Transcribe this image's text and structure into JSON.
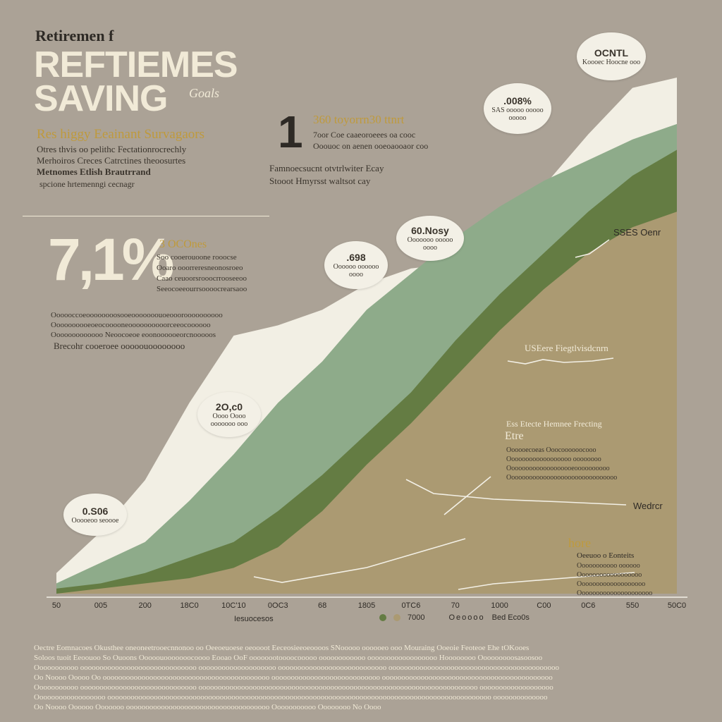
{
  "header": {
    "overline": "Retiremen f",
    "title_line1": "REFTIEMES",
    "title_line2": "SAVING",
    "title_tag": "Goals",
    "subtitle": "Res higgy Eeainant Survagaors",
    "desc_lines": [
      "Otres thvis oo pelithc Fectationrocrechly",
      "Merhoiros Creces Catrctines theoosurtes",
      "Metnomes Etlish Brautrrand"
    ],
    "desc_footer": "spcione hrtemenngi cecnagr"
  },
  "callout_center": {
    "number": "1",
    "headline": "360 toyorrn30 ttnrt",
    "lines": [
      "7oor Coe caaeoroeees oa cooc",
      "Ooouoc on aenen ooeoaooaor coo"
    ],
    "footer_lines": [
      "Famnoecsucnt otvtrlwiter Ecay",
      "Stooot Hmyrsst waltsot cay"
    ]
  },
  "stat": {
    "value": "7,1%",
    "heading": "3 OCOnes",
    "lines": [
      "Soo cooerouoone rooocse",
      "Ooaro ooorreresneonosroeo",
      "Caao ceuoorsrooocrrooseeoo",
      "Seeocoeeourrsoooocrearsaoo"
    ]
  },
  "paragraph": {
    "lines": [
      "Oooooccoeoooooooosooeooooooouoeoooroooooooooo",
      "Oooooooooeoeocooooneoooooooooorceeocoooooo",
      "Ooooooooooooo Neoocoeoe eoonoooooeorcnooooos"
    ],
    "footer": "Brecohr cooeroee ooooouoooooooo"
  },
  "bubbles": [
    {
      "value": "0.S06",
      "sub": "Ooooeoo seoooe"
    },
    {
      "value": "2O,c0",
      "sub": "Oooo Oooo ooooooo ooo"
    },
    {
      "value": ".698",
      "sub": "Oooooo oooooo oooo"
    },
    {
      "value": "60.Nosy",
      "sub": "Ooooooo ooooo oooo"
    },
    {
      "value": ".008%",
      "sub": "SAS ooooo ooooo ooooo"
    },
    {
      "value": "OCNTL",
      "sub": "Koooec Hoocne ooo"
    }
  ],
  "right_labels": {
    "label1": "SSES Oenr",
    "label2": "USEere Fiegtlvisdcnrn",
    "box_title": "Ess Etecte Hemnee Frecting",
    "box_tag": "Etre",
    "box_lines": [
      "Oooooecoeas Ooocoooooocooo",
      "Oooooooooooooooooo oooooooo",
      "Ooooooooooooooooooeoooooooooo",
      "Ooooooooooooooooooooooooooooooo"
    ],
    "label3": "Wedrcr",
    "small_tag": "hore",
    "small_title": "Oeeuoo o Eonteits",
    "small_lines": [
      "Ooooooooooo oooooo",
      "Oooooooooooooooooo",
      "Ooooooooooooooooooo",
      "Ooooooooooooooooooooo"
    ]
  },
  "legend": {
    "left_label": "Iesuocesos",
    "item1": "7000",
    "item2": "Oeoooo",
    "item3": "Bed Eco0s"
  },
  "footer_lines": [
    "Oectre Eomnacoes Okusthee oneoneetrooecnnonoo oo Oeeoeuoese oeoooot Eeceosieeoeoooos SNooooo oooooeo ooo Mouraing Ooeoie Feoteoe Ehe tOKooes",
    "Soloos tuoit Eeoouoo So Ouoons Ooooouooooooocoooo Eooao OoF oooooootoooocooooo oooooooooooo oooooooooooooooooo Hoooooooo Ooooooooosasoosoo",
    "Ooooooooooo oooooooooooooooooooooooooooooo oooooooooooooooooooo oooooooooooooooooooooooooooo oooooooooooooooooooooooooooooooooooooooooooo",
    "Oo Noooo Ooooo Oo ooooooooooooooooooooooooooooooooooooooooooo oooooooooooooooooooooooooooo oooooooooooooooooooooooooooooooooooooooooooo",
    "Ooooooooooo oooooooooooooooooooooooooooooo oooooooooooooooooooooooooooooooooooooooooooooooooooooooooooooooooooooooo ooooooooooooooooooo",
    "Oooooooooooooooooo ooooooooooooooooooooooooooooooooooooooooooooooooooooooooooooooooooooooooooooooooooooooooooooooooooo oooooooooooooo",
    "Oo Noooo Oooooo Ooooooo ooooooooooooooooooooooooooooooooooooo Ooooooooooo Oooooooo No Oooo"
  ],
  "chart_data": {
    "type": "area",
    "title": "",
    "x": [
      "50",
      "005",
      "200",
      "18C0",
      "10C'10",
      "0OC3",
      "68",
      "1805",
      "0TC6",
      "70",
      "1000",
      "C00",
      "0C6",
      "550",
      "50C0"
    ],
    "series": [
      {
        "color": "#f2efe4",
        "values": [
          4,
          12,
          22,
          37,
          50,
          52,
          55,
          60,
          63,
          64,
          72,
          79,
          89,
          98,
          100
        ]
      },
      {
        "color": "#8eab8a",
        "values": [
          2,
          6,
          10,
          18,
          27,
          37,
          45,
          55,
          62,
          69,
          75,
          80,
          84,
          88,
          91
        ]
      },
      {
        "color": "#647c43",
        "values": [
          1,
          2,
          4,
          7,
          10,
          16,
          23,
          31,
          39,
          49,
          58,
          66,
          74,
          81,
          86
        ]
      },
      {
        "color": "#ab9a72",
        "values": [
          0,
          1,
          2,
          3,
          5,
          9,
          16,
          25,
          33,
          42,
          51,
          59,
          66,
          71,
          74
        ]
      }
    ],
    "ylim": [
      0,
      100
    ],
    "grid": false,
    "palette": {
      "background": "#aba296",
      "line": "#f3f0e6",
      "accent_gold": "#bf9a3c"
    }
  }
}
